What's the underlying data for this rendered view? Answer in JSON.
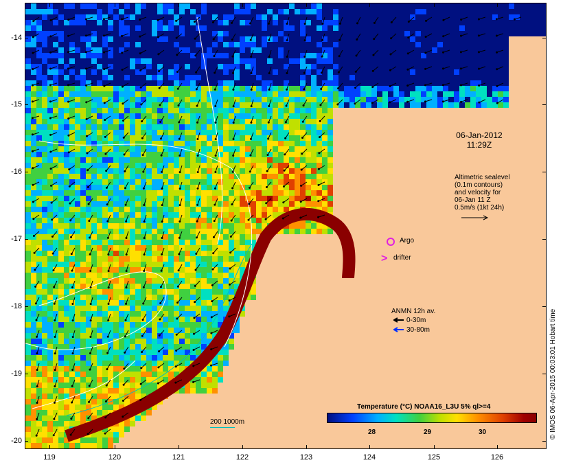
{
  "map": {
    "date_line1": "06-Jan-2012",
    "date_line2": "11:29Z",
    "altimetry_lines": [
      "Altimetric sealevel",
      "(0.1m contours)",
      "and velocity for",
      "06-Jan 11 Z",
      "0.5m/s (1kt 24h)"
    ],
    "argo_label": "Argo",
    "drifter_label": "drifter",
    "anmn_title": "ANMN 12h av.",
    "anmn_shallow": "0-30m",
    "anmn_deep": "30-80m",
    "depth_legend": "200  1000m",
    "colorbar_title": "Temperature (°C) NOAA16_L3U 5% ql>=4",
    "colorbar_ticks": [
      "28",
      "29",
      "30"
    ],
    "credit": "© IMOS 06-Apr-2015 00:03:01 Hobart time",
    "lat_ticks": [
      "-14",
      "-15",
      "-16",
      "-17",
      "-18",
      "-19",
      "-20"
    ],
    "lon_ticks": [
      "119",
      "120",
      "121",
      "122",
      "123",
      "124",
      "125",
      "126"
    ],
    "colors": {
      "land": "#f9c89a",
      "argo": "#e020e0",
      "drifter": "#e020e0",
      "shallow_arrow": "#000000",
      "deep_arrow": "#0030ff",
      "depth_200m": "#00c0c0",
      "depth_1000m": "#ffffff"
    },
    "colorbar_colors": [
      "#001080",
      "#0040ff",
      "#00b0ff",
      "#00e0c0",
      "#40d040",
      "#c0e000",
      "#ffe000",
      "#ff9000",
      "#e04000",
      "#a00000"
    ]
  }
}
